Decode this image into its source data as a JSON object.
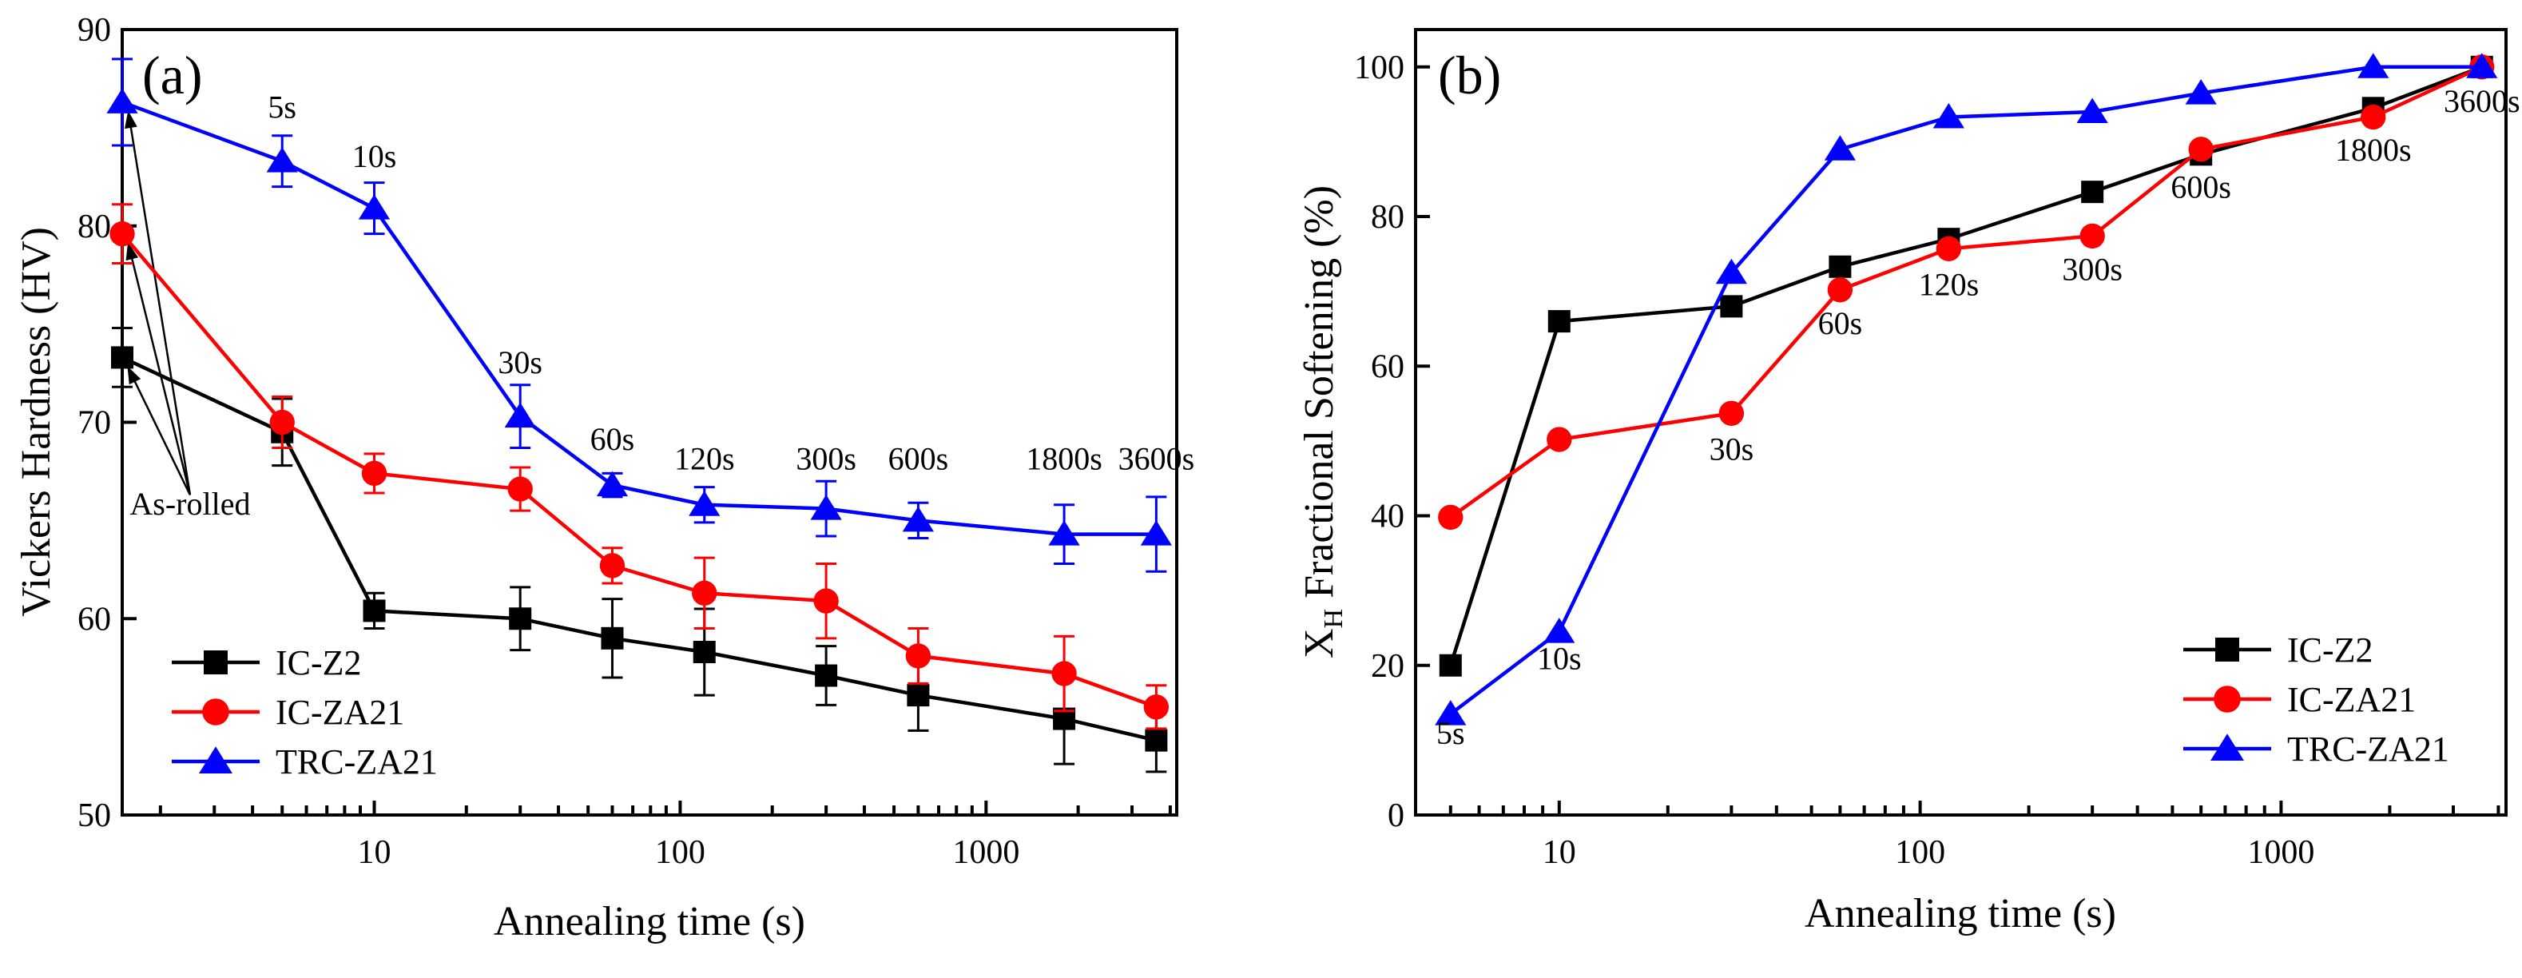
{
  "chart_data": [
    {
      "type": "line",
      "panel_label": "(a)",
      "xlabel": "Annealing time (s)",
      "ylabel": "Vickers Hardness (HV)",
      "xscale": "log",
      "xlim": [
        1.5,
        4200
      ],
      "ylim": [
        50,
        90
      ],
      "x_ticks": [
        10,
        100,
        1000
      ],
      "x_tick_labels": [
        "10",
        "100",
        "1000"
      ],
      "y_ticks": [
        50,
        60,
        70,
        80,
        90
      ],
      "y_tick_labels": [
        "50",
        "60",
        "70",
        "80",
        "90"
      ],
      "legend_position": "bottom-left",
      "series": [
        {
          "name": "IC-Z2",
          "color": "#000000",
          "marker": "square",
          "x": [
            1.5,
            5,
            10,
            30,
            60,
            120,
            300,
            600,
            1800,
            3600
          ],
          "y": [
            73.3,
            69.5,
            60.4,
            60.0,
            59.0,
            58.3,
            57.1,
            56.1,
            54.9,
            53.8
          ],
          "err": [
            1.5,
            1.7,
            0.9,
            1.6,
            2.0,
            2.2,
            1.5,
            1.8,
            2.3,
            1.6
          ]
        },
        {
          "name": "IC-ZA21",
          "color": "#ff0000",
          "marker": "circle",
          "x": [
            1.5,
            5,
            10,
            30,
            60,
            120,
            300,
            600,
            1800,
            3600
          ],
          "y": [
            79.6,
            70.0,
            67.4,
            66.6,
            62.7,
            61.3,
            60.9,
            58.1,
            57.2,
            55.5
          ],
          "err": [
            1.5,
            1.3,
            1.0,
            1.1,
            0.9,
            1.8,
            1.9,
            1.4,
            1.9,
            1.1
          ]
        },
        {
          "name": "TRC-ZA21",
          "color": "#0000ff",
          "marker": "triangle",
          "x": [
            1.5,
            5,
            10,
            30,
            60,
            120,
            300,
            600,
            1800,
            3600
          ],
          "y": [
            86.3,
            83.3,
            80.9,
            70.3,
            66.8,
            65.8,
            65.6,
            65.0,
            64.3,
            64.3
          ],
          "err": [
            2.2,
            1.3,
            1.3,
            1.6,
            0.6,
            0.9,
            1.4,
            0.9,
            1.5,
            1.9
          ]
        }
      ],
      "annotations": [
        {
          "text": "5s",
          "x": 5,
          "y": 85.5
        },
        {
          "text": "10s",
          "x": 10,
          "y": 83.0
        },
        {
          "text": "30s",
          "x": 30,
          "y": 72.5
        },
        {
          "text": "60s",
          "x": 60,
          "y": 68.6
        },
        {
          "text": "120s",
          "x": 120,
          "y": 67.6
        },
        {
          "text": "300s",
          "x": 300,
          "y": 67.6
        },
        {
          "text": "600s",
          "x": 600,
          "y": 67.6
        },
        {
          "text": "1800s",
          "x": 1800,
          "y": 67.6
        },
        {
          "text": "3600s",
          "x": 3600,
          "y": 67.6
        },
        {
          "text": "As-rolled",
          "x": 2.5,
          "y": 65.3
        }
      ]
    },
    {
      "type": "line",
      "panel_label": "(b)",
      "xlabel": "Annealing time (s)",
      "ylabel_main": "X",
      "ylabel_sub": "H",
      "ylabel_rest": " Fractional Softening (%)",
      "xscale": "log",
      "xlim": [
        4,
        4200
      ],
      "ylim": [
        0,
        105
      ],
      "x_ticks": [
        10,
        100,
        1000
      ],
      "x_tick_labels": [
        "10",
        "100",
        "1000"
      ],
      "y_ticks": [
        0,
        20,
        40,
        60,
        80,
        100
      ],
      "y_tick_labels": [
        "0",
        "20",
        "40",
        "60",
        "80",
        "100"
      ],
      "legend_position": "bottom-right",
      "series": [
        {
          "name": "IC-Z2",
          "color": "#000000",
          "marker": "square",
          "x": [
            5,
            10,
            30,
            60,
            120,
            300,
            600,
            1800,
            3600
          ],
          "y": [
            20,
            66,
            68,
            73.3,
            77,
            83.3,
            88.3,
            94.5,
            100
          ]
        },
        {
          "name": "IC-ZA21",
          "color": "#ff0000",
          "marker": "circle",
          "x": [
            5,
            10,
            30,
            60,
            120,
            300,
            600,
            1800,
            3600
          ],
          "y": [
            39.8,
            50.2,
            53.7,
            70.2,
            75.7,
            77.4,
            89,
            93.3,
            100
          ]
        },
        {
          "name": "TRC-ZA21",
          "color": "#0000ff",
          "marker": "triangle",
          "x": [
            5,
            10,
            30,
            60,
            120,
            300,
            600,
            1800,
            3600
          ],
          "y": [
            13.5,
            24.5,
            72.5,
            89,
            93.3,
            94,
            96.5,
            100,
            100
          ]
        }
      ],
      "annotations": [
        {
          "text": "5s",
          "x": 5,
          "y": 9.5
        },
        {
          "text": "10s",
          "x": 10,
          "y": 19.5
        },
        {
          "text": "30s",
          "x": 30,
          "y": 47.5
        },
        {
          "text": "60s",
          "x": 60,
          "y": 64.3
        },
        {
          "text": "120s",
          "x": 120,
          "y": 69.5
        },
        {
          "text": "300s",
          "x": 300,
          "y": 71.5
        },
        {
          "text": "600s",
          "x": 600,
          "y": 82.5
        },
        {
          "text": "1800s",
          "x": 1800,
          "y": 87.5
        },
        {
          "text": "3600s",
          "x": 3600,
          "y": 94
        }
      ]
    }
  ]
}
